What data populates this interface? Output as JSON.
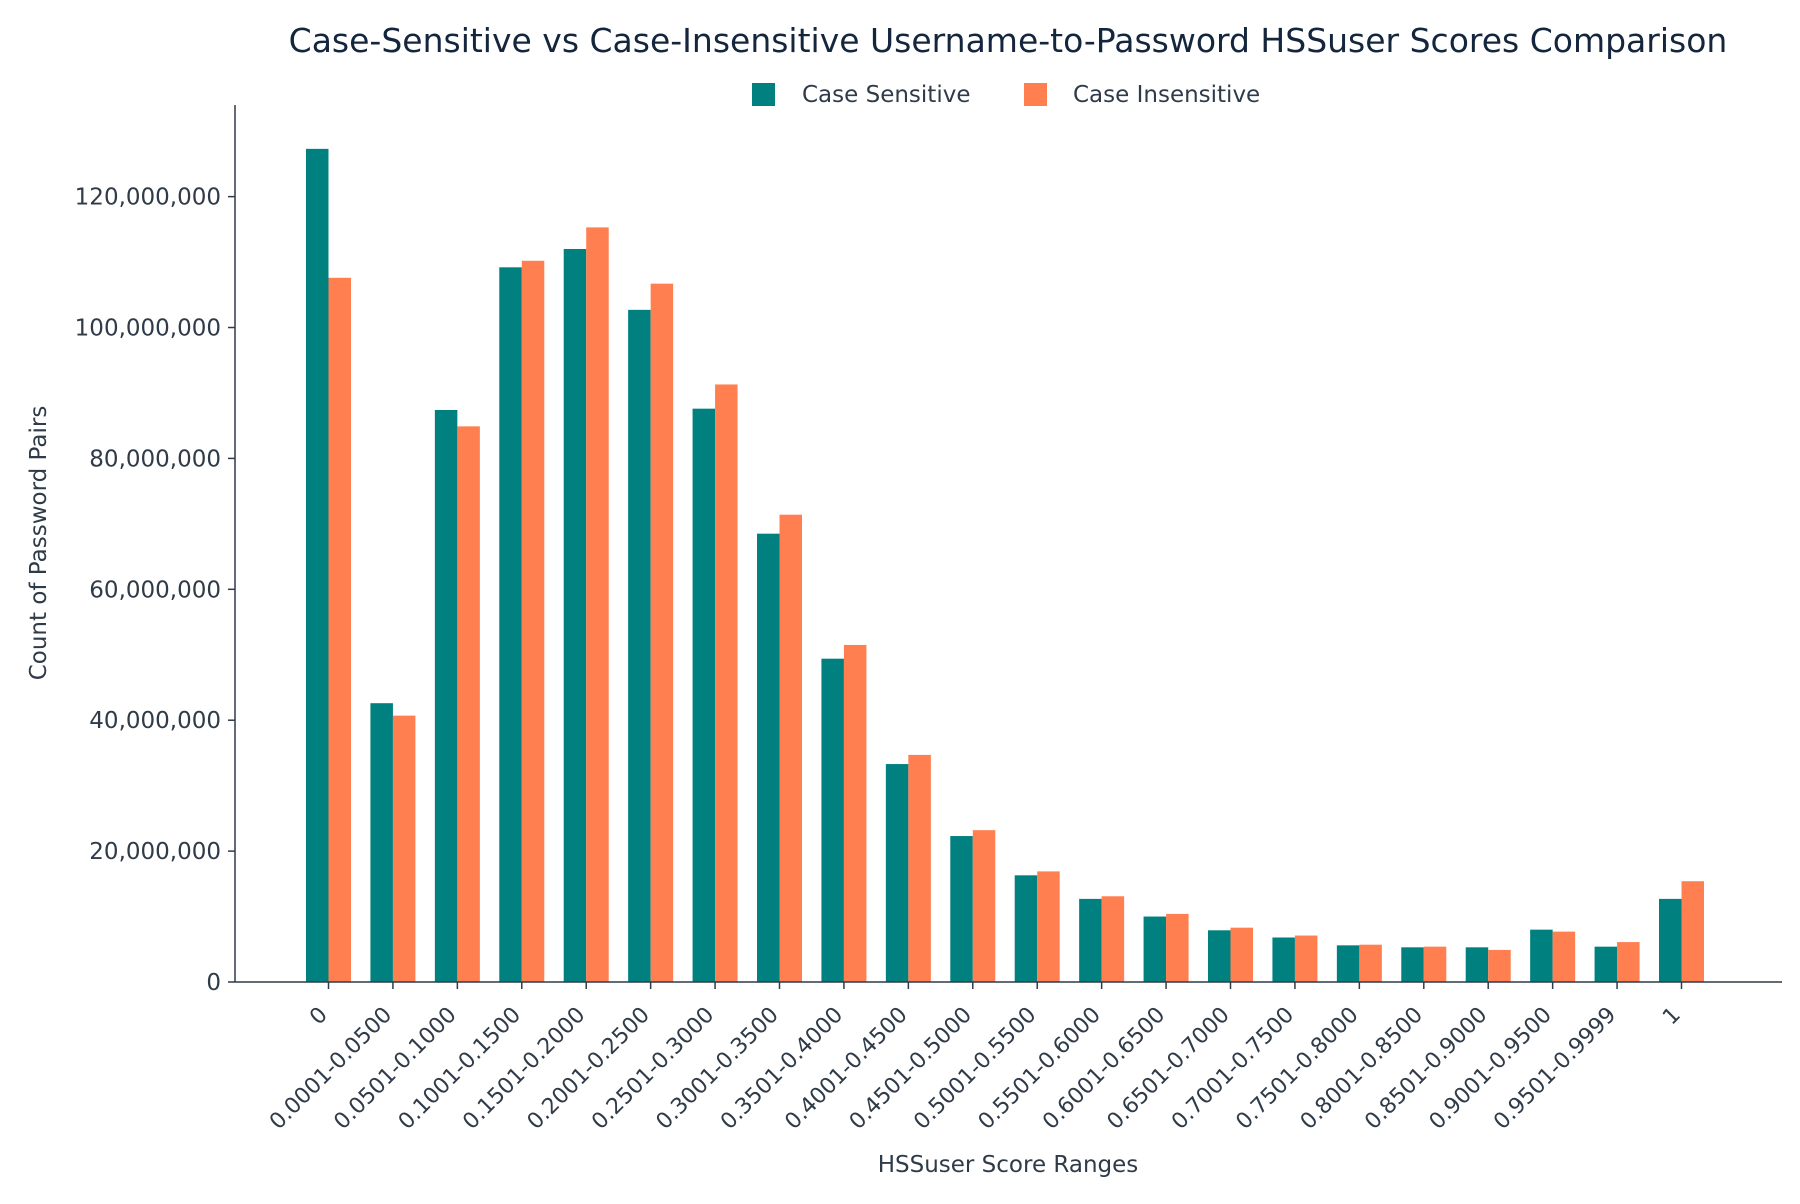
{
  "chart_data": {
    "type": "bar",
    "title": "Case-Sensitive vs Case-Insensitive Username-to-Password HSSuser Scores Comparison",
    "xlabel": "HSSuser Score Ranges",
    "ylabel": "Count of Password Pairs",
    "ylim": [
      0,
      134000000
    ],
    "yticks": [
      0,
      20000000,
      40000000,
      60000000,
      80000000,
      100000000,
      120000000
    ],
    "ytick_labels": [
      "0",
      "20,000,000",
      "40,000,000",
      "60,000,000",
      "80,000,000",
      "100,000,000",
      "120,000,000"
    ],
    "grid": false,
    "legend_position": "top-center",
    "categories": [
      "0",
      "0.0001-0.0500",
      "0.0501-0.1000",
      "0.1001-0.1500",
      "0.1501-0.2000",
      "0.2001-0.2500",
      "0.2501-0.3000",
      "0.3001-0.3500",
      "0.3501-0.4000",
      "0.4001-0.4500",
      "0.4501-0.5000",
      "0.5001-0.5500",
      "0.5501-0.6000",
      "0.6001-0.6500",
      "0.6501-0.7000",
      "0.7001-0.7500",
      "0.7501-0.8000",
      "0.8001-0.8500",
      "0.8501-0.9000",
      "0.9001-0.9500",
      "0.9501-0.9999",
      "1"
    ],
    "series": [
      {
        "name": "Case Sensitive",
        "color": "#00807f",
        "values": [
          127300000,
          42600000,
          87400000,
          109200000,
          112000000,
          102700000,
          87600000,
          68500000,
          49400000,
          33300000,
          22300000,
          16300000,
          12700000,
          10000000,
          7900000,
          6800000,
          5600000,
          5300000,
          5300000,
          8000000,
          5400000,
          12700000
        ]
      },
      {
        "name": "Case Insensitive",
        "color": "#ff7f50",
        "values": [
          107600000,
          40700000,
          84900000,
          110200000,
          115300000,
          106700000,
          91300000,
          71400000,
          51500000,
          34700000,
          23200000,
          16900000,
          13100000,
          10400000,
          8300000,
          7100000,
          5700000,
          5400000,
          4900000,
          7700000,
          6100000,
          15400000
        ]
      }
    ]
  }
}
